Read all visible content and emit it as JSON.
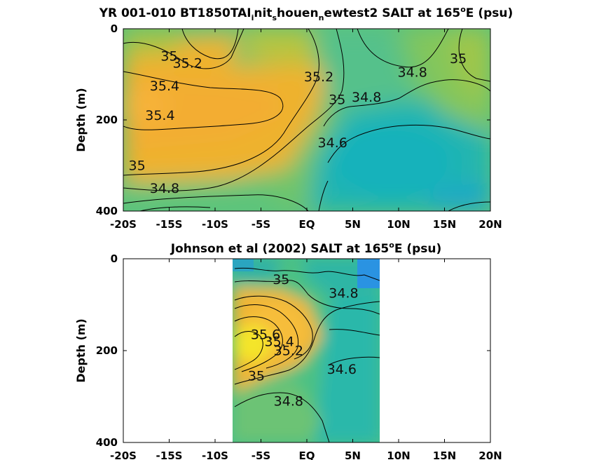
{
  "chart_data": [
    {
      "type": "heatmap",
      "subtype": "filled-contour",
      "title": "YR 001-010 BT1850TAI_nit_s houen_n ewtest2 SALT at 165°E (psu)",
      "title_parts": {
        "a": "YR 001-010 BT1850TAI",
        "b": "nit",
        "c": "houen",
        "d": "ewtest2 SALT at 165",
        "deg": "o",
        "e": "E (psu)",
        "sub_i": "i",
        "sub_s": "s",
        "sub_n": "n"
      },
      "ylabel": "Depth (m)",
      "xlim": [
        -20,
        20
      ],
      "ylim": [
        0,
        400
      ],
      "y_reversed": true,
      "x_tick_labels": [
        "-20S",
        "-15S",
        "-10S",
        "-5S",
        "EQ",
        "5N",
        "10N",
        "15N",
        "20N"
      ],
      "x_ticks": [
        -20,
        -15,
        -10,
        -5,
        0,
        5,
        10,
        15,
        20
      ],
      "y_tick_labels": [
        "0",
        "200",
        "400"
      ],
      "y_ticks": [
        0,
        200,
        400
      ],
      "data_extent_x": [
        -20,
        20
      ],
      "contour_labels": [
        {
          "text": "35",
          "x": -15.0,
          "y": 70
        },
        {
          "text": "35.2",
          "x": -13.0,
          "y": 85
        },
        {
          "text": "35.4",
          "x": -15.5,
          "y": 135
        },
        {
          "text": "35.4",
          "x": -16.0,
          "y": 200
        },
        {
          "text": "35.2",
          "x": 1.3,
          "y": 115
        },
        {
          "text": "35",
          "x": 3.3,
          "y": 165
        },
        {
          "text": "34.8",
          "x": 6.5,
          "y": 160
        },
        {
          "text": "34.6",
          "x": 2.8,
          "y": 260
        },
        {
          "text": "34.8",
          "x": 11.5,
          "y": 105
        },
        {
          "text": "35",
          "x": 16.5,
          "y": 75
        },
        {
          "text": "35",
          "x": -18.5,
          "y": 310
        },
        {
          "text": "34.8",
          "x": -15.5,
          "y": 360
        }
      ]
    },
    {
      "type": "heatmap",
      "subtype": "filled-contour",
      "title": "Johnson et al (2002) SALT at 165°E (psu)",
      "title_parts": {
        "a": "Johnson et al (2002) SALT at 165",
        "deg": "o",
        "e": "E (psu)"
      },
      "ylabel": "Depth (m)",
      "xlim": [
        -20,
        20
      ],
      "ylim": [
        0,
        400
      ],
      "y_reversed": true,
      "x_tick_labels": [
        "-20S",
        "-15S",
        "-10S",
        "-5S",
        "EQ",
        "5N",
        "10N",
        "15N",
        "20N"
      ],
      "x_ticks": [
        -20,
        -15,
        -10,
        -5,
        0,
        5,
        10,
        15,
        20
      ],
      "y_tick_labels": [
        "0",
        "200",
        "400"
      ],
      "y_ticks": [
        0,
        200,
        400
      ],
      "data_extent_x": [
        -8,
        8
      ],
      "contour_labels": [
        {
          "text": "35",
          "x": -2.8,
          "y": 55
        },
        {
          "text": "34.8",
          "x": 4.0,
          "y": 85
        },
        {
          "text": "35.6",
          "x": -4.5,
          "y": 175
        },
        {
          "text": "35.4",
          "x": -3.0,
          "y": 190
        },
        {
          "text": "35.2",
          "x": -2.0,
          "y": 210
        },
        {
          "text": "35",
          "x": -5.5,
          "y": 265
        },
        {
          "text": "34.6",
          "x": 3.8,
          "y": 250
        },
        {
          "text": "34.8",
          "x": -2.0,
          "y": 320
        }
      ]
    }
  ],
  "colors": {
    "high": "#f9e627",
    "mid_high": "#f5b73a",
    "mid": "#9ec64a",
    "mid_low": "#3dbd95",
    "low": "#1db5b4",
    "lowest": "#2a8fe6",
    "background": "#ffffff"
  }
}
